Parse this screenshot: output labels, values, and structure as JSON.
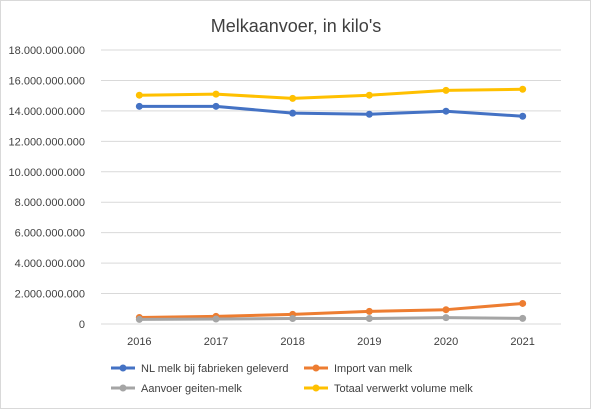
{
  "chart_data": {
    "type": "line",
    "title": "Melkaanvoer, in kilo's",
    "xlabel": "",
    "ylabel": "",
    "categories": [
      "2016",
      "2017",
      "2018",
      "2019",
      "2020",
      "2021"
    ],
    "ylim": [
      0,
      18000000000
    ],
    "yticks": [
      0,
      2000000000,
      4000000000,
      6000000000,
      8000000000,
      10000000000,
      12000000000,
      14000000000,
      16000000000,
      18000000000
    ],
    "ytick_labels": [
      "0",
      "2.000.000.000",
      "4.000.000.000",
      "6.000.000.000",
      "8.000.000.000",
      "10.000.000.000",
      "12.000.000.000",
      "14.000.000.000",
      "16.000.000.000",
      "18.000.000.000"
    ],
    "grid": true,
    "legend_position": "bottom",
    "series": [
      {
        "name": "NL melk bij fabrieken geleverd",
        "color": "#4472c4",
        "values": [
          14300000000,
          14300000000,
          13850000000,
          13780000000,
          13980000000,
          13650000000
        ]
      },
      {
        "name": "Import van melk",
        "color": "#ed7d31",
        "values": [
          430000000,
          500000000,
          630000000,
          830000000,
          940000000,
          1350000000
        ]
      },
      {
        "name": "Aanvoer geiten-melk",
        "color": "#a5a5a5",
        "values": [
          300000000,
          330000000,
          360000000,
          360000000,
          420000000,
          370000000
        ]
      },
      {
        "name": "Totaal verwerkt volume melk",
        "color": "#ffc000",
        "values": [
          15030000000,
          15100000000,
          14820000000,
          15030000000,
          15350000000,
          15420000000
        ]
      }
    ]
  }
}
